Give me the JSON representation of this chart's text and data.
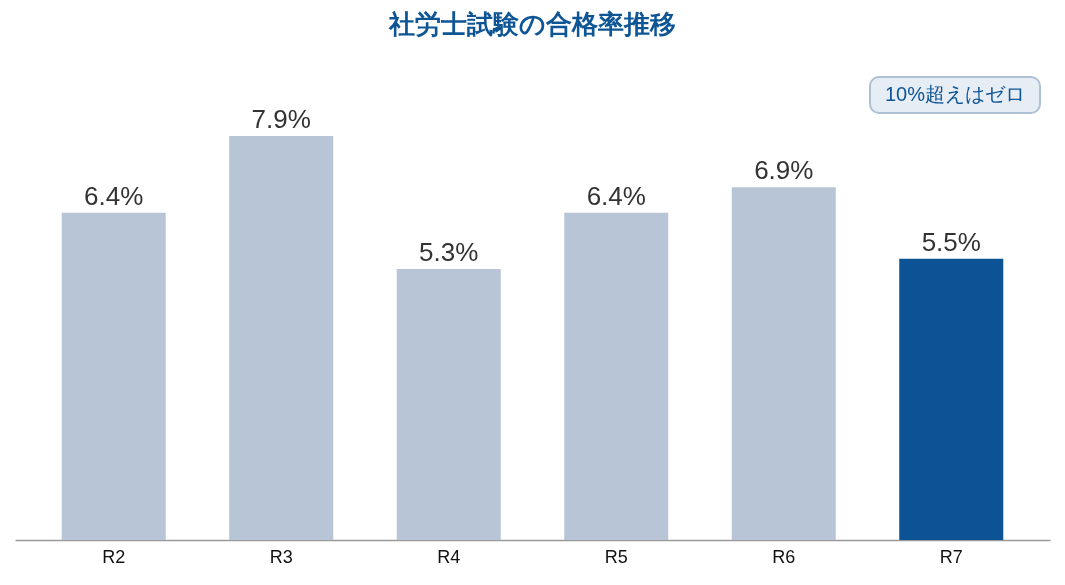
{
  "chart_data": {
    "type": "bar",
    "title": "社労士試験の合格率推移",
    "categories": [
      "R2",
      "R3",
      "R4",
      "R5",
      "R6",
      "R7"
    ],
    "values": [
      6.4,
      7.9,
      5.3,
      6.4,
      6.9,
      5.5
    ],
    "colors": [
      "#b8c5d6",
      "#b8c5d6",
      "#b8c5d6",
      "#b8c5d6",
      "#b8c5d6",
      "#0b5394"
    ],
    "value_labels": [
      "6.4%",
      "7.9%",
      "5.3%",
      "6.4%",
      "6.9%",
      "5.5%"
    ],
    "annotations": [
      "10%超えはゼロ"
    ]
  }
}
